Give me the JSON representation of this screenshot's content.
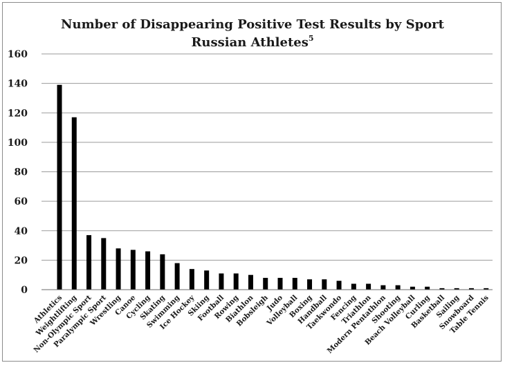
{
  "chart_data": {
    "type": "bar",
    "title": "Number of Disappearing Positive Test Results by Sport",
    "subtitle": "Russian Athletes",
    "subtitle_superscript": "5",
    "xlabel": "",
    "ylabel": "",
    "ylim": [
      0,
      160
    ],
    "yticks": [
      "0",
      "20",
      "40",
      "60",
      "80",
      "100",
      "120",
      "140",
      "160"
    ],
    "grid": true,
    "legend": "none",
    "bar_color": "#000000",
    "grid_color": "#9a9a9a",
    "categories": [
      "Athletics",
      "Weightlifting",
      "Non-Olympic Sport",
      "Paralympic Sport",
      "Wrestling",
      "Canoe",
      "Cycling",
      "Skating",
      "Swimming",
      "Ice Hockey",
      "Skiing",
      "Football",
      "Rowing",
      "Biathlon",
      "Bobsleigh",
      "Judo",
      "Volleyball",
      "Boxing",
      "Handball",
      "Taekwondo",
      "Fencing",
      "Triathlon",
      "Modern Pentathlon",
      "Shooting",
      "Beach Volleyball",
      "Curling",
      "Basketball",
      "Sailing",
      "Snowboard",
      "Table Tennis"
    ],
    "values": [
      139,
      117,
      37,
      35,
      28,
      27,
      26,
      24,
      18,
      14,
      13,
      11,
      11,
      10,
      8,
      8,
      8,
      7,
      7,
      6,
      4,
      4,
      3,
      3,
      2,
      2,
      1,
      1,
      1,
      1
    ]
  }
}
